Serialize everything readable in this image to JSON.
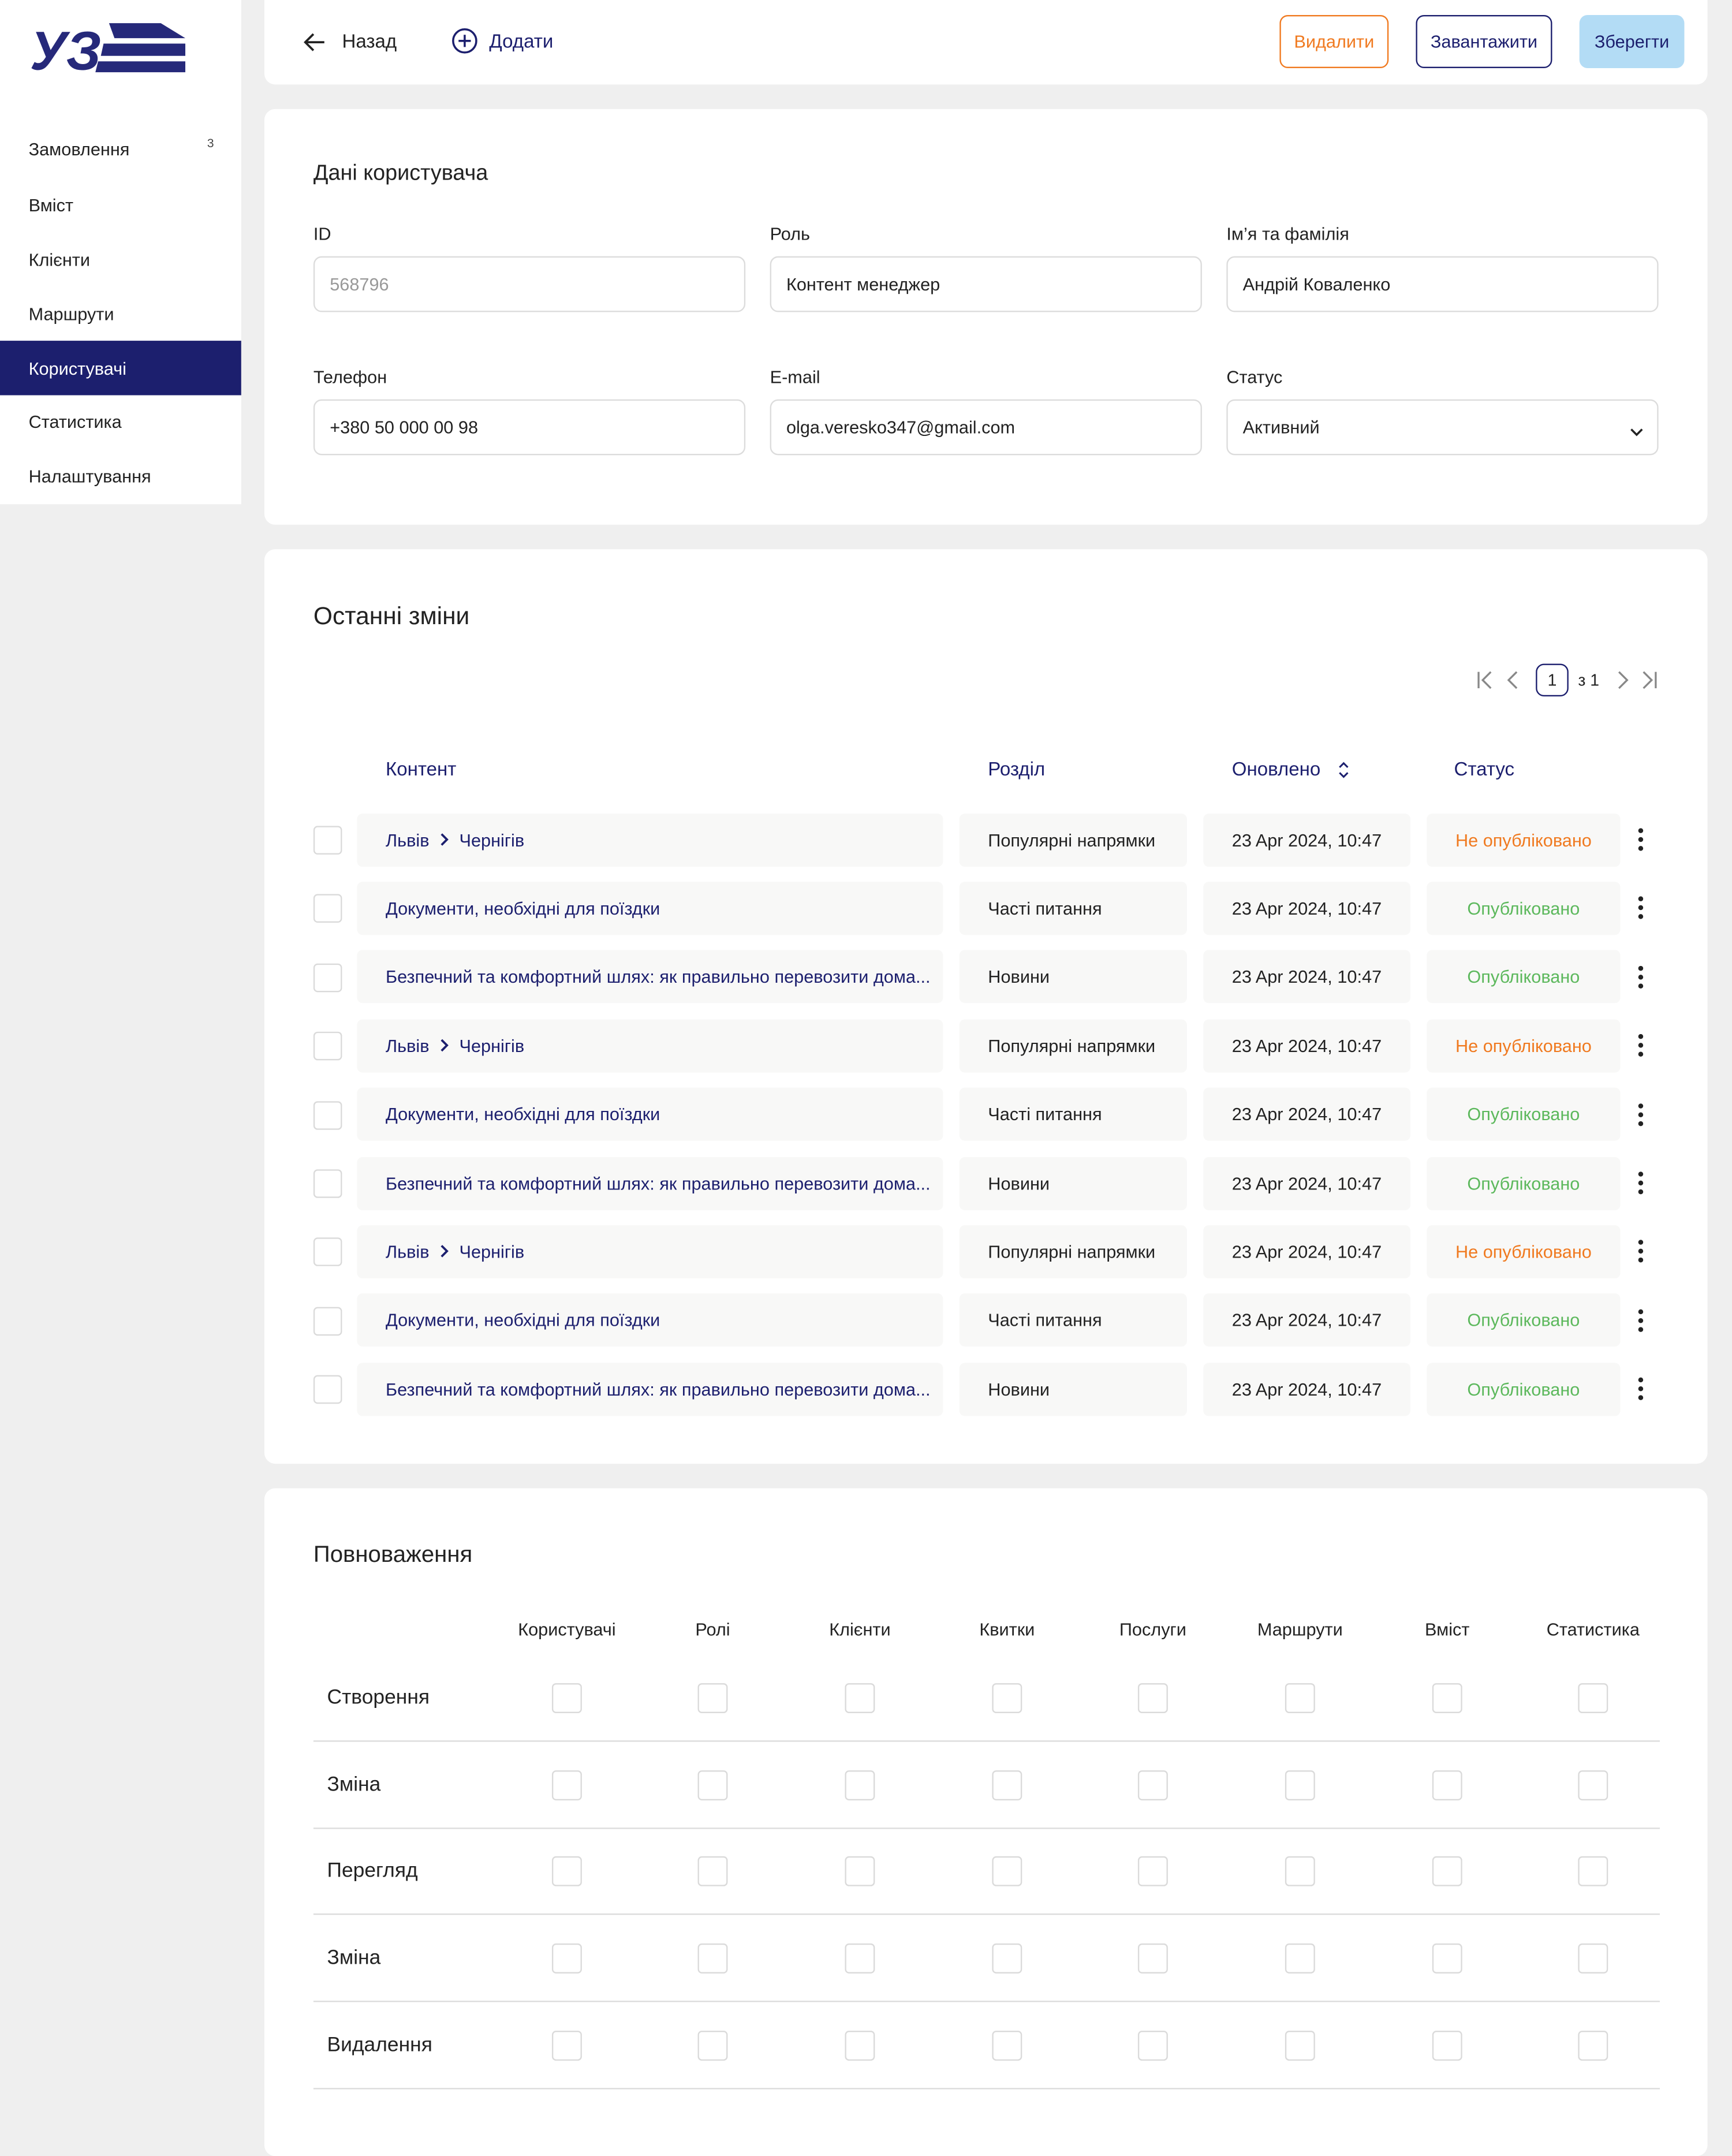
{
  "sidebar": {
    "logo": "УЗ",
    "menu": [
      {
        "label": "Замовлення",
        "badge": "3"
      },
      {
        "label": "Вміст"
      },
      {
        "label": "Клієнти"
      },
      {
        "label": "Маршрути"
      },
      {
        "label": "Користувачі",
        "active": true
      },
      {
        "label": "Статистика"
      },
      {
        "label": "Налаштування"
      }
    ]
  },
  "toolbar": {
    "back": "Назад",
    "add": "Додати",
    "delete": "Видалити",
    "upload": "Завантажити",
    "save": "Зберегти"
  },
  "user": {
    "title": "Дані користувача",
    "fields": [
      {
        "label": "ID",
        "placeholder": "568796"
      },
      {
        "label": "Роль",
        "value": "Контент менеджер"
      },
      {
        "label": "Ім’я та фамілія",
        "value": "Андрій Коваленко"
      },
      {
        "label": "Телефон",
        "value": "+380 50 000 00 98"
      },
      {
        "label": "E-mail",
        "value": "olga.veresko347@gmail.com"
      },
      {
        "label": "Статус",
        "value": "Активний",
        "select": true
      }
    ]
  },
  "changes": {
    "title": "Останні зміни",
    "pagination": {
      "page": "1",
      "total": "з 1"
    },
    "columns": [
      "Контент",
      "Розділ",
      "Оновлено",
      "Статус"
    ],
    "rows": [
      {
        "from": "Львів",
        "to": "Чернігів",
        "section": "Популярні напрямки",
        "updated": "23 Apr 2024, 10:47",
        "status": "Не опубліковано",
        "status_color": "#f07a20"
      },
      {
        "content": "Документи, необхідні для поїздки",
        "section": "Часті питання",
        "updated": "23 Apr 2024, 10:47",
        "status": "Опубліковано",
        "status_color": "#5cb85c"
      },
      {
        "content": "Безпечний та комфортний шлях: як правильно перевозити дома...",
        "section": "Новини",
        "updated": "23 Apr 2024, 10:47",
        "status": "Опубліковано",
        "status_color": "#5cb85c"
      },
      {
        "from": "Львів",
        "to": "Чернігів",
        "section": "Популярні напрямки",
        "updated": "23 Apr 2024, 10:47",
        "status": "Не опубліковано",
        "status_color": "#f07a20"
      },
      {
        "content": "Документи, необхідні для поїздки",
        "section": "Часті питання",
        "updated": "23 Apr 2024, 10:47",
        "status": "Опубліковано",
        "status_color": "#5cb85c"
      },
      {
        "content": "Безпечний та комфортний шлях: як правильно перевозити дома...",
        "section": "Новини",
        "updated": "23 Apr 2024, 10:47",
        "status": "Опубліковано",
        "status_color": "#5cb85c"
      },
      {
        "from": "Львів",
        "to": "Чернігів",
        "section": "Популярні напрямки",
        "updated": "23 Apr 2024, 10:47",
        "status": "Не опубліковано",
        "status_color": "#f07a20"
      },
      {
        "content": "Документи, необхідні для поїздки",
        "section": "Часті питання",
        "updated": "23 Apr 2024, 10:47",
        "status": "Опубліковано",
        "status_color": "#5cb85c"
      },
      {
        "content": "Безпечний та комфортний шлях: як правильно перевозити дома...",
        "section": "Новини",
        "updated": "23 Apr 2024, 10:47",
        "status": "Опубліковано",
        "status_color": "#5cb85c"
      }
    ]
  },
  "permissions": {
    "title": "Повноваження",
    "columns": [
      "Користувачі",
      "Ролі",
      "Клієнти",
      "Квитки",
      "Послуги",
      "Маршрути",
      "Вміст",
      "Статистика"
    ],
    "rows": [
      "Створення",
      "Зміна",
      "Перегляд",
      "Зміна",
      "Видалення"
    ]
  }
}
